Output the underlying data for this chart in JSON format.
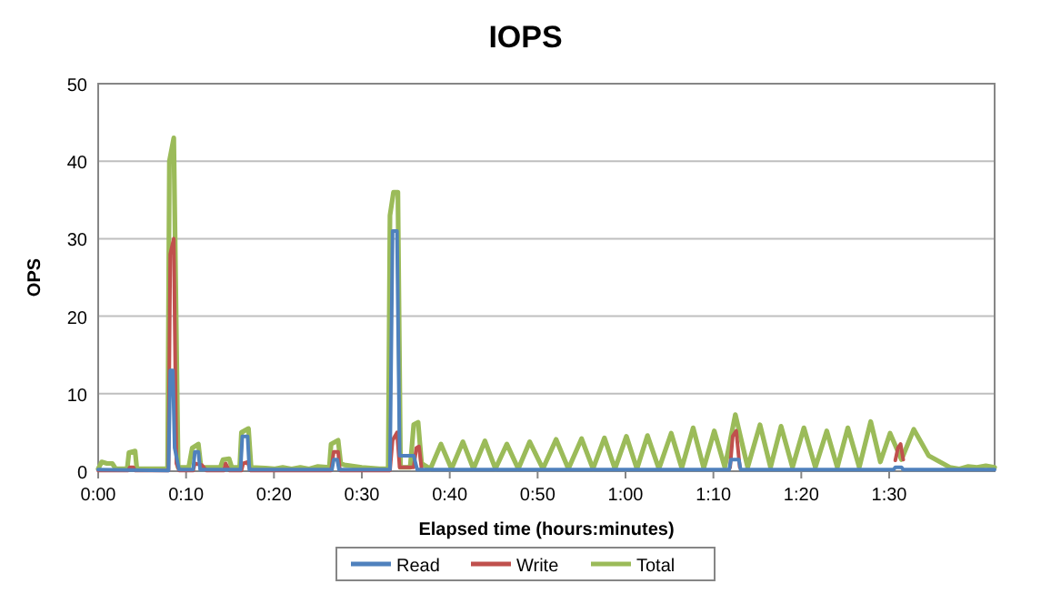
{
  "chart_data": {
    "type": "line",
    "title": "IOPS",
    "xlabel": "Elapsed  time (hours:minutes)",
    "ylabel": "OPS",
    "xlim": [
      0,
      102
    ],
    "ylim": [
      0,
      50
    ],
    "xticks": [
      {
        "value": 0,
        "label": "0:00"
      },
      {
        "value": 10,
        "label": "0:10"
      },
      {
        "value": 20,
        "label": "0:20"
      },
      {
        "value": 30,
        "label": "0:30"
      },
      {
        "value": 40,
        "label": "0:40"
      },
      {
        "value": 50,
        "label": "0:50"
      },
      {
        "value": 60,
        "label": "1:00"
      },
      {
        "value": 70,
        "label": "1:10"
      },
      {
        "value": 80,
        "label": "1:20"
      },
      {
        "value": 90,
        "label": "1:30"
      }
    ],
    "yticks": [
      0,
      10,
      20,
      30,
      40,
      50
    ],
    "grid": "y",
    "legend": "bottom",
    "marker": "none",
    "line_style": "solid",
    "series": [
      {
        "name": "Read",
        "color": "#4f81bd",
        "x": [
          0,
          8,
          8.2,
          8.5,
          8.7,
          9.2,
          10.8,
          11,
          11.4,
          11.6,
          16.2,
          16.4,
          17,
          17.2,
          26.6,
          26.8,
          27.2,
          27.4,
          33.2,
          33.5,
          34,
          34.3,
          35.9,
          36.3,
          50,
          71.8,
          72,
          72.9,
          73.1,
          90.5,
          90.7,
          91.4,
          91.6,
          102
        ],
        "values": [
          0.2,
          0.1,
          13,
          13,
          3,
          0.2,
          0.2,
          2.5,
          2.5,
          0.2,
          0.2,
          4.5,
          4.5,
          0.2,
          0.2,
          1.5,
          1.5,
          0.2,
          0.2,
          31,
          31,
          2,
          2,
          0.2,
          0.2,
          0.2,
          1.5,
          1.5,
          0.2,
          0.2,
          0.5,
          0.5,
          0.2,
          0.2
        ]
      },
      {
        "name": "Write",
        "color": "#c0504d",
        "x": [
          0,
          3.4,
          3.6,
          4,
          4.2,
          8,
          8.2,
          8.6,
          8.9,
          9.2,
          10.8,
          11,
          11.8,
          12.3,
          14.3,
          14.5,
          14.9,
          16.3,
          16.5,
          17,
          17.3,
          26.5,
          26.8,
          27.3,
          27.5,
          33.2,
          33.5,
          34,
          34.3,
          35.9,
          36.2,
          36.5,
          36.8,
          37.5,
          71.9,
          72.2,
          72.6,
          73,
          80,
          90.7,
          91,
          91.3,
          91.6
        ],
        "values": [
          0.1,
          0.1,
          0.5,
          0.5,
          0.1,
          0.1,
          28,
          30,
          1,
          0.1,
          0.1,
          1,
          0.8,
          0.1,
          0.1,
          1,
          0.1,
          0.1,
          1,
          1.2,
          0.1,
          0.1,
          2.5,
          2.5,
          0.1,
          0.1,
          4,
          5,
          0.5,
          0.5,
          3,
          3.2,
          0.3,
          null,
          0.5,
          4.5,
          5.2,
          0.5,
          null,
          1.4,
          3,
          3.5,
          1.5
        ]
      },
      {
        "name": "Total",
        "color": "#9bbb59",
        "x": [
          0,
          0.4,
          1,
          1.6,
          2,
          3.3,
          3.5,
          4.2,
          4.4,
          7.9,
          8.1,
          8.6,
          9.1,
          10.3,
          10.7,
          11.4,
          11.7,
          13.9,
          14.2,
          14.9,
          15.2,
          16.1,
          16.3,
          17.1,
          17.4,
          19,
          20,
          21,
          22,
          23,
          24,
          25,
          26.3,
          26.5,
          27.3,
          27.6,
          28,
          30,
          32,
          33,
          33.2,
          33.6,
          34.1,
          34.4,
          35.5,
          35.9,
          36.4,
          36.8,
          37.8,
          39,
          40.2,
          41.5,
          42.7,
          44,
          45.2,
          46.5,
          47.8,
          49.1,
          50.6,
          52.1,
          53.5,
          55,
          56.3,
          57.6,
          58.8,
          60.1,
          61.3,
          62.5,
          63.8,
          65.2,
          66.4,
          67.7,
          68.9,
          70.1,
          71.3,
          72.5,
          73.9,
          75.3,
          76.5,
          77.7,
          79,
          80.3,
          81.6,
          82.9,
          84.1,
          85.3,
          86.6,
          87.9,
          89,
          90.1,
          91.4,
          92.8,
          94.5,
          96.9,
          98,
          99,
          100,
          101,
          102
        ],
        "values": [
          0.3,
          1.2,
          1,
          1,
          0.3,
          0.3,
          2.4,
          2.6,
          0.3,
          0.3,
          40,
          43,
          0.5,
          0.5,
          3,
          3.5,
          0.5,
          0.5,
          1.5,
          1.6,
          0.5,
          0.5,
          5,
          5.5,
          0.5,
          0.4,
          0.3,
          0.5,
          0.3,
          0.5,
          0.3,
          0.6,
          0.5,
          3.5,
          4,
          1,
          0.8,
          0.5,
          0.3,
          0.3,
          33,
          36,
          36,
          0.5,
          0.5,
          6,
          6.3,
          1,
          0.3,
          3.5,
          0.3,
          3.8,
          0.3,
          3.9,
          0.3,
          3.5,
          0.3,
          3.8,
          0.3,
          4.1,
          0.3,
          4.2,
          0.3,
          4.3,
          0.3,
          4.5,
          0.3,
          4.6,
          0.3,
          4.9,
          0.4,
          5.6,
          0.4,
          5.2,
          0.5,
          7.3,
          0.5,
          6,
          0.5,
          5.8,
          0.5,
          5.6,
          0.5,
          5.2,
          0.5,
          5.6,
          0.5,
          6.4,
          1.2,
          4.9,
          1.5,
          5.4,
          2,
          0.5,
          0.3,
          0.6,
          0.5,
          0.7,
          0.5
        ]
      }
    ]
  }
}
